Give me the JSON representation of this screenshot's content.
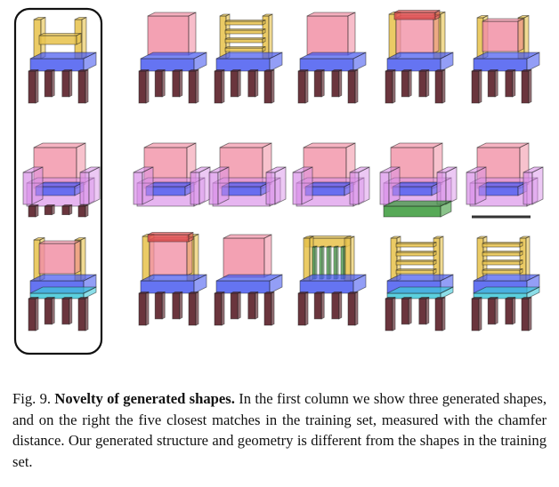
{
  "caption": {
    "label": "Fig. 9.",
    "title": "Novelty of generated shapes.",
    "text": "In the first column we show three generated shapes, and on the right the five closest matches in the training set, measured with the chamfer distance. Our generated structure and geometry is different from the shapes in the training set."
  },
  "colors": {
    "seat": "#4a5cf0",
    "back": "#f08aa0",
    "back_frame": "#e8c24a",
    "leg": "#5a1f28",
    "arm": "#d98ee8",
    "base": "#3a9a3a",
    "cyan": "#3ec8d8",
    "highlight_border": "#111111"
  },
  "grid": {
    "rows": [
      {
        "name": "row-chairs-1",
        "shapes": [
          {
            "name": "generated-chair-1",
            "type": "slatback"
          },
          {
            "name": "match-1-1",
            "type": "solidback"
          },
          {
            "name": "match-1-2",
            "type": "ladderback"
          },
          {
            "name": "match-1-3",
            "type": "solidback"
          },
          {
            "name": "match-1-4",
            "type": "tallframe"
          },
          {
            "name": "match-1-5",
            "type": "framedback"
          }
        ]
      },
      {
        "name": "row-armchairs",
        "shapes": [
          {
            "name": "generated-armchair",
            "type": "armchair"
          },
          {
            "name": "match-2-1",
            "type": "armchair"
          },
          {
            "name": "match-2-2",
            "type": "armchair"
          },
          {
            "name": "match-2-3",
            "type": "armchair"
          },
          {
            "name": "match-2-4",
            "type": "armchair-base"
          },
          {
            "name": "match-2-5",
            "type": "armchair-sled"
          }
        ]
      },
      {
        "name": "row-chairs-2",
        "shapes": [
          {
            "name": "generated-chair-2",
            "type": "framedback-cyan"
          },
          {
            "name": "match-3-1",
            "type": "tallframe"
          },
          {
            "name": "match-3-2",
            "type": "solidback"
          },
          {
            "name": "match-3-3",
            "type": "spindleback"
          },
          {
            "name": "match-3-4",
            "type": "ladderback-cyan"
          },
          {
            "name": "match-3-5",
            "type": "ladderback-cyan"
          }
        ]
      }
    ]
  }
}
